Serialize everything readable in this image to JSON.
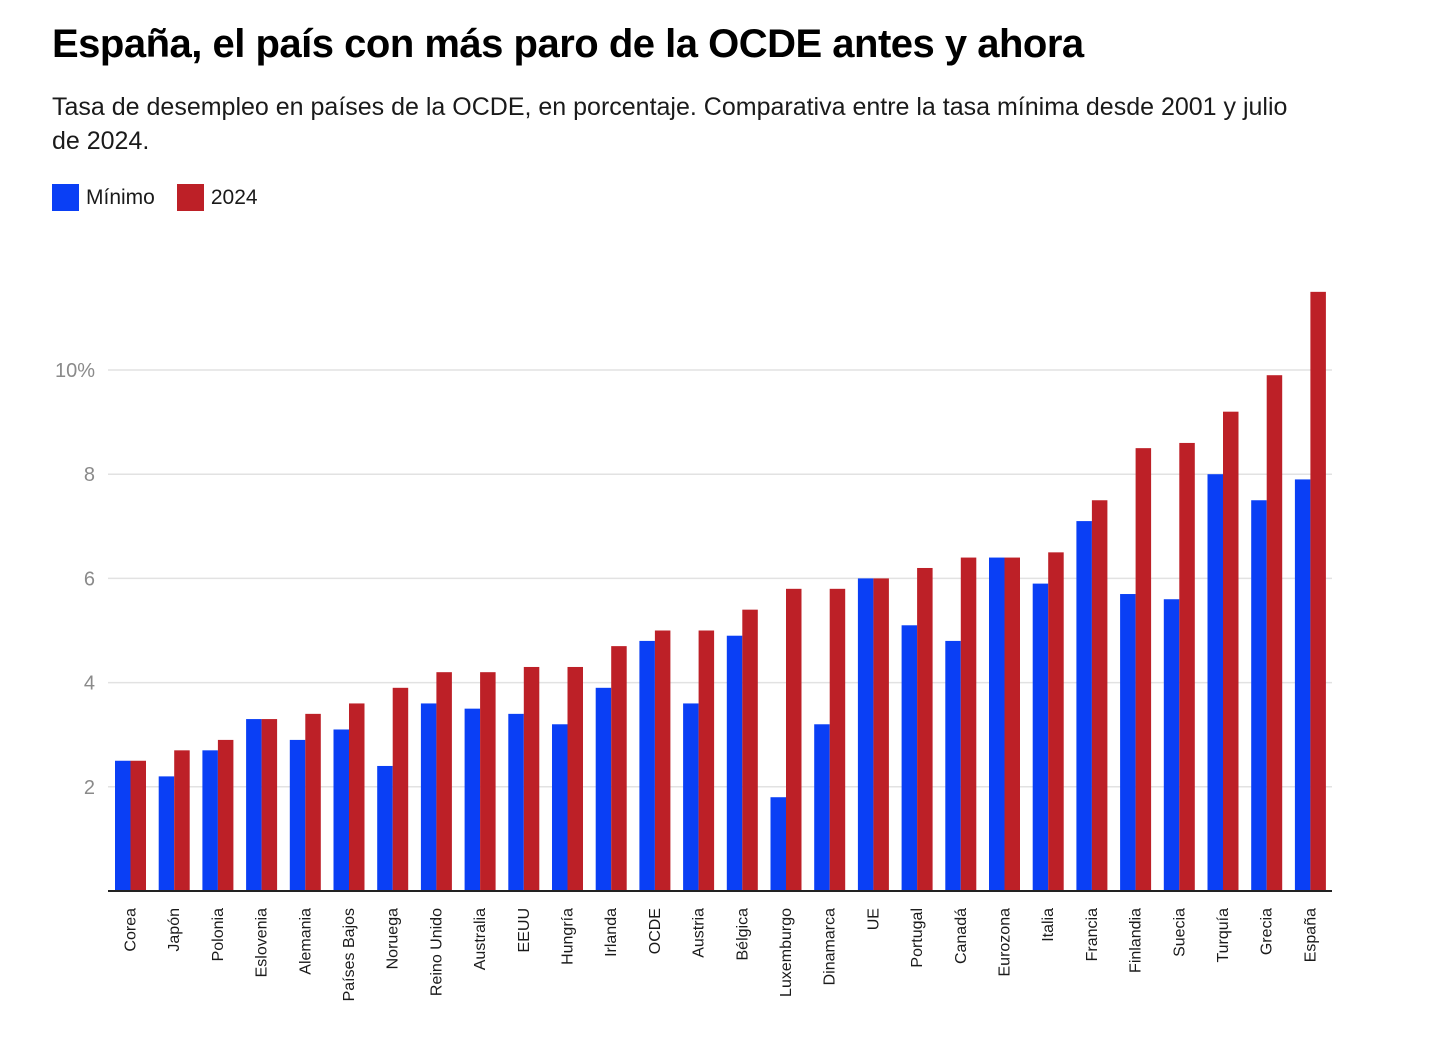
{
  "title": "España, el país con más paro de la OCDE antes y ahora",
  "subtitle": "Tasa de desempleo en países de la OCDE, en porcentaje. Comparativa entre la tasa mínima desde 2001 y julio de 2024.",
  "colors": {
    "minimo": "#0a3ff5",
    "y2024": "#bd2027",
    "grid": "#e2e2e2",
    "axis": "#222222"
  },
  "legend": {
    "minimo": "Mínimo",
    "y2024": "2024"
  },
  "chart_data": {
    "type": "bar",
    "title": "España, el país con más paro de la OCDE antes y ahora",
    "subtitle": "Tasa de desempleo en países de la OCDE, en porcentaje. Comparativa entre la tasa mínima desde 2001 y julio de 2024.",
    "xlabel": "",
    "ylabel": "",
    "ylim": [
      0,
      11.5
    ],
    "yticks": [
      2,
      4,
      6,
      8,
      10
    ],
    "ytick_labels": [
      "2",
      "4",
      "6",
      "8",
      "10%"
    ],
    "grid": true,
    "legend_position": "top-left",
    "categories": [
      "Corea",
      "Japón",
      "Polonia",
      "Eslovenia",
      "Alemania",
      "Países Bajos",
      "Noruega",
      "Reino Unido",
      "Australia",
      "EEUU",
      "Hungría",
      "Irlanda",
      "OCDE",
      "Austria",
      "Bélgica",
      "Luxemburgo",
      "Dinamarca",
      "UE",
      "Portugal",
      "Canadá",
      "Eurozona",
      "Italia",
      "Francia",
      "Finlandia",
      "Suecia",
      "Turquía",
      "Grecia",
      "España"
    ],
    "series": [
      {
        "name": "Mínimo",
        "values": [
          2.5,
          2.2,
          2.7,
          3.3,
          2.9,
          3.1,
          2.4,
          3.6,
          3.5,
          3.4,
          3.2,
          3.9,
          4.8,
          3.6,
          4.9,
          1.8,
          3.2,
          6.0,
          5.1,
          4.8,
          6.4,
          5.9,
          7.1,
          5.7,
          5.6,
          8.0,
          7.5,
          7.9
        ]
      },
      {
        "name": "2024",
        "values": [
          2.5,
          2.7,
          2.9,
          3.3,
          3.4,
          3.6,
          3.9,
          4.2,
          4.2,
          4.3,
          4.3,
          4.7,
          5.0,
          5.0,
          5.4,
          5.8,
          5.8,
          6.0,
          6.2,
          6.4,
          6.4,
          6.5,
          7.5,
          8.5,
          8.6,
          9.2,
          9.9,
          11.5
        ]
      }
    ]
  }
}
